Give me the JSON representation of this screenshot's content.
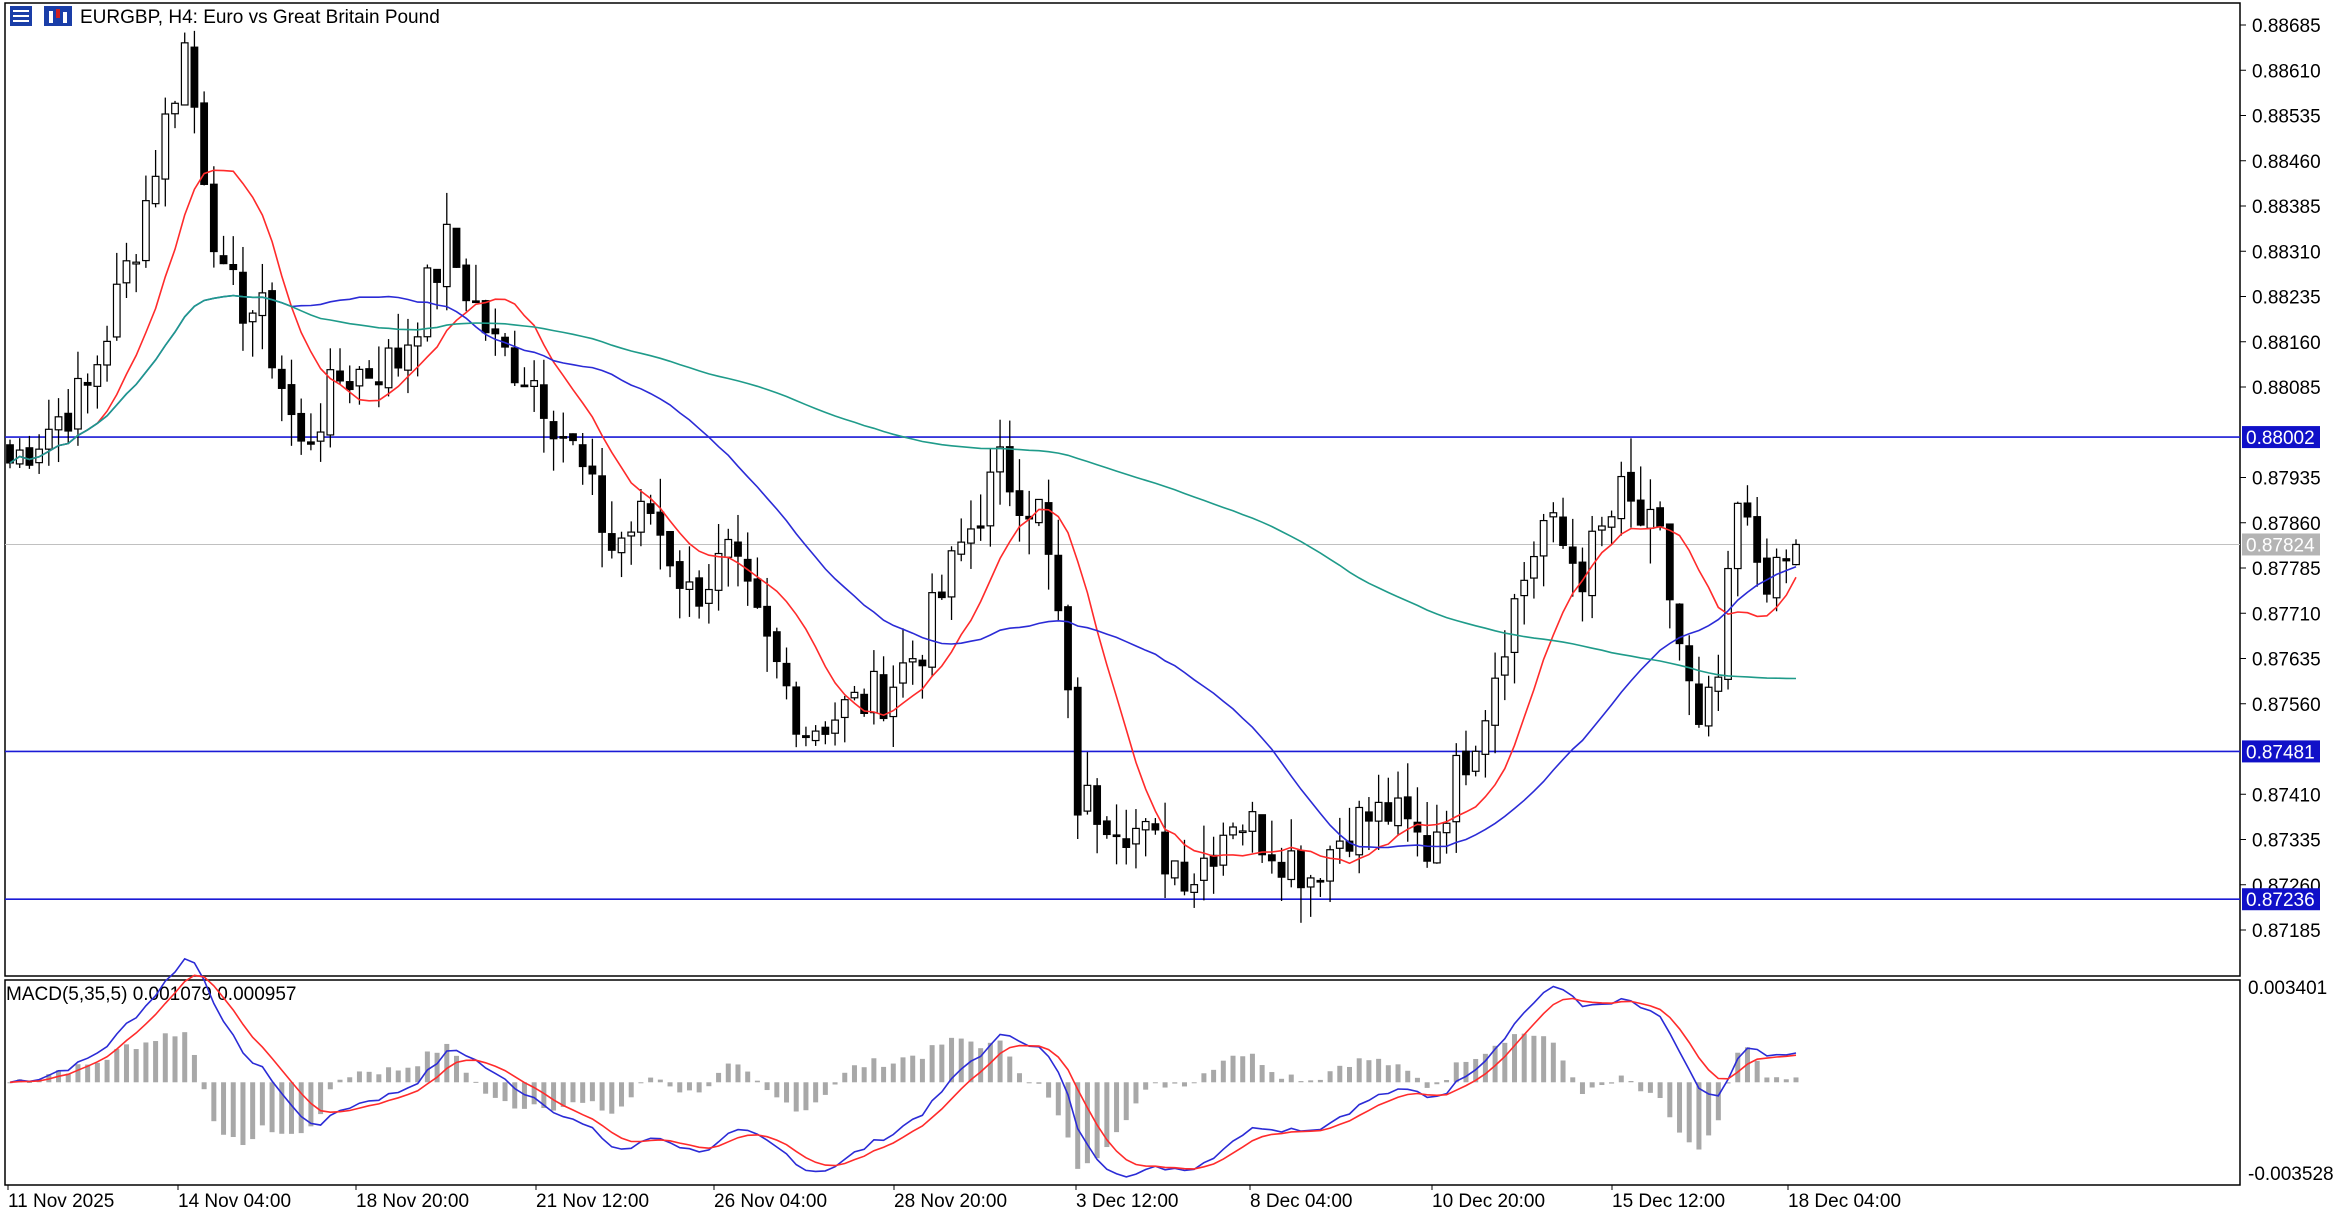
{
  "header": {
    "symbol_line": "EURGBP, H4:  Euro vs Great Britain Pound",
    "menu_icon": "window-menu-icon",
    "symbol_icon": "chart-candles-icon"
  },
  "colors": {
    "up_body": "#ffffff",
    "down_body": "#000000",
    "candle_line": "#000000",
    "ma_fast": "#ff2b2b",
    "ma_mid": "#2b2bd6",
    "ma_slow": "#1f9b8a",
    "hline": "#1a1ad6",
    "tag_bg": "#1010c8",
    "cur_tag_bg": "#b4b4b4",
    "macd_line": "#2b2bd6",
    "signal_line": "#ff2b2b",
    "histogram": "#a8a8a8"
  },
  "price_axis": {
    "labels": [
      "0.88685",
      "0.88610",
      "0.88535",
      "0.88460",
      "0.88385",
      "0.88310",
      "0.88235",
      "0.88160",
      "0.88085",
      "0.87935",
      "0.87860",
      "0.87785",
      "0.87710",
      "0.87635",
      "0.87560",
      "0.87410",
      "0.87335",
      "0.87260",
      "0.87185"
    ]
  },
  "levels": [
    {
      "price": 0.88002,
      "label": "0.88002"
    },
    {
      "price": 0.87481,
      "label": "0.87481"
    },
    {
      "price": 0.87236,
      "label": "0.87236"
    }
  ],
  "current_price": {
    "price": 0.87824,
    "label": "0.87824"
  },
  "time_axis": {
    "labels": [
      "11 Nov 2025",
      "14 Nov 04:00",
      "18 Nov 20:00",
      "21 Nov 12:00",
      "26 Nov 04:00",
      "28 Nov 20:00",
      "3 Dec 12:00",
      "8 Dec 04:00",
      "10 Dec 20:00",
      "15 Dec 12:00",
      "18 Dec 04:00"
    ]
  },
  "macd": {
    "title": "MACD(5,35,5) 0.001079 0.000957",
    "axis_top": "0.003401",
    "axis_bottom": "-0.003528"
  },
  "chart_data": {
    "type": "candlestick",
    "symbol": "EURGBP",
    "timeframe": "H4",
    "title": "EURGBP, H4:  Euro vs Great Britain Pound",
    "ylim": [
      0.8715,
      0.8872
    ],
    "x": [
      "11 Nov 2025",
      "14 Nov 04:00",
      "18 Nov 20:00",
      "21 Nov 12:00",
      "26 Nov 04:00",
      "28 Nov 20:00",
      "3 Dec 12:00",
      "8 Dec 04:00",
      "10 Dec 20:00",
      "15 Dec 12:00",
      "18 Dec 04:00"
    ],
    "close_path": [
      [
        0,
        0.8796
      ],
      [
        8,
        0.8808
      ],
      [
        13,
        0.8833
      ],
      [
        18,
        0.8865
      ],
      [
        22,
        0.8825
      ],
      [
        26,
        0.882
      ],
      [
        30,
        0.8798
      ],
      [
        34,
        0.881
      ],
      [
        40,
        0.8813
      ],
      [
        45,
        0.8832
      ],
      [
        50,
        0.8815
      ],
      [
        54,
        0.881
      ],
      [
        58,
        0.8798
      ],
      [
        62,
        0.8782
      ],
      [
        66,
        0.8788
      ],
      [
        70,
        0.8774
      ],
      [
        74,
        0.878
      ],
      [
        78,
        0.8765
      ],
      [
        82,
        0.8752
      ],
      [
        86,
        0.8755
      ],
      [
        90,
        0.8758
      ],
      [
        94,
        0.8766
      ],
      [
        98,
        0.8782
      ],
      [
        102,
        0.8795
      ],
      [
        106,
        0.8788
      ],
      [
        108,
        0.877
      ],
      [
        110,
        0.874
      ],
      [
        114,
        0.8738
      ],
      [
        118,
        0.8732
      ],
      [
        122,
        0.8728
      ],
      [
        126,
        0.8738
      ],
      [
        130,
        0.8733
      ],
      [
        134,
        0.8728
      ],
      [
        138,
        0.8736
      ],
      [
        142,
        0.8738
      ],
      [
        146,
        0.8732
      ],
      [
        150,
        0.8748
      ],
      [
        152,
        0.8756
      ],
      [
        154,
        0.8768
      ],
      [
        158,
        0.8786
      ],
      [
        162,
        0.8778
      ],
      [
        166,
        0.879
      ],
      [
        170,
        0.8782
      ],
      [
        172,
        0.8766
      ],
      [
        174,
        0.875
      ],
      [
        176,
        0.876
      ],
      [
        178,
        0.8788
      ],
      [
        180,
        0.878
      ],
      [
        182,
        0.8776
      ],
      [
        184,
        0.87824
      ]
    ],
    "ma_fast_name": "",
    "ma_mid_name": "",
    "ma_slow_name": "",
    "levels": [
      0.88002,
      0.87481,
      0.87236
    ],
    "current": 0.87824,
    "macd": {
      "params": "5,35,5",
      "macd": 0.001079,
      "signal": 0.000957,
      "ylim": [
        -0.003528,
        0.003401
      ]
    }
  }
}
